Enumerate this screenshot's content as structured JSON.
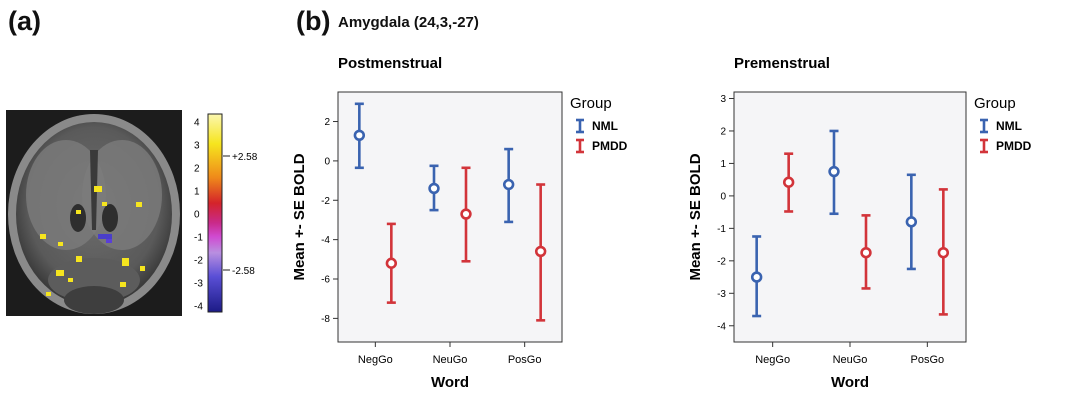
{
  "panel_a": {
    "label": "(a)",
    "colorbar": {
      "ticks": [
        "4",
        "3",
        "2",
        "1",
        "0",
        "-1",
        "-2",
        "-3",
        "-4"
      ],
      "threshold_pos": "+2.58",
      "threshold_neg": "-2.58"
    }
  },
  "panel_b": {
    "label": "(b)",
    "region": "Amygdala (24,3,-27)"
  },
  "chart_data": [
    {
      "type": "errorbar",
      "title": "Postmenstrual",
      "xlabel": "Word",
      "ylabel": "Mean +- SE BOLD",
      "categories": [
        "NegGo",
        "NeuGo",
        "PosGo"
      ],
      "ylim": [
        -9.2,
        3.5
      ],
      "yticks": [
        2,
        0,
        -2,
        -4,
        -6,
        -8
      ],
      "legend_title": "Group",
      "legend_position": "top-right",
      "series": [
        {
          "name": "NML",
          "color": "#3a63b0",
          "mean": [
            1.3,
            -1.4,
            -1.2
          ],
          "low": [
            -0.35,
            -2.5,
            -3.1
          ],
          "high": [
            2.9,
            -0.25,
            0.6
          ]
        },
        {
          "name": "PMDD",
          "color": "#d2343a",
          "mean": [
            -5.2,
            -2.7,
            -4.6
          ],
          "low": [
            -7.2,
            -5.1,
            -8.1
          ],
          "high": [
            -3.2,
            -0.35,
            -1.2
          ]
        }
      ]
    },
    {
      "type": "errorbar",
      "title": "Premenstrual",
      "xlabel": "Word",
      "ylabel": "Mean +- SE BOLD",
      "categories": [
        "NegGo",
        "NeuGo",
        "PosGo"
      ],
      "ylim": [
        -4.5,
        3.2
      ],
      "yticks": [
        3,
        2,
        1,
        0,
        -1,
        -2,
        -3,
        -4
      ],
      "legend_title": "Group",
      "legend_position": "top-right",
      "series": [
        {
          "name": "NML",
          "color": "#3a63b0",
          "mean": [
            -2.5,
            0.75,
            -0.8
          ],
          "low": [
            -3.7,
            -0.55,
            -2.25
          ],
          "high": [
            -1.25,
            2.0,
            0.65
          ]
        },
        {
          "name": "PMDD",
          "color": "#d2343a",
          "mean": [
            0.42,
            -1.75,
            -1.75
          ],
          "low": [
            -0.48,
            -2.85,
            -3.65
          ],
          "high": [
            1.3,
            -0.6,
            0.2
          ]
        }
      ]
    }
  ]
}
